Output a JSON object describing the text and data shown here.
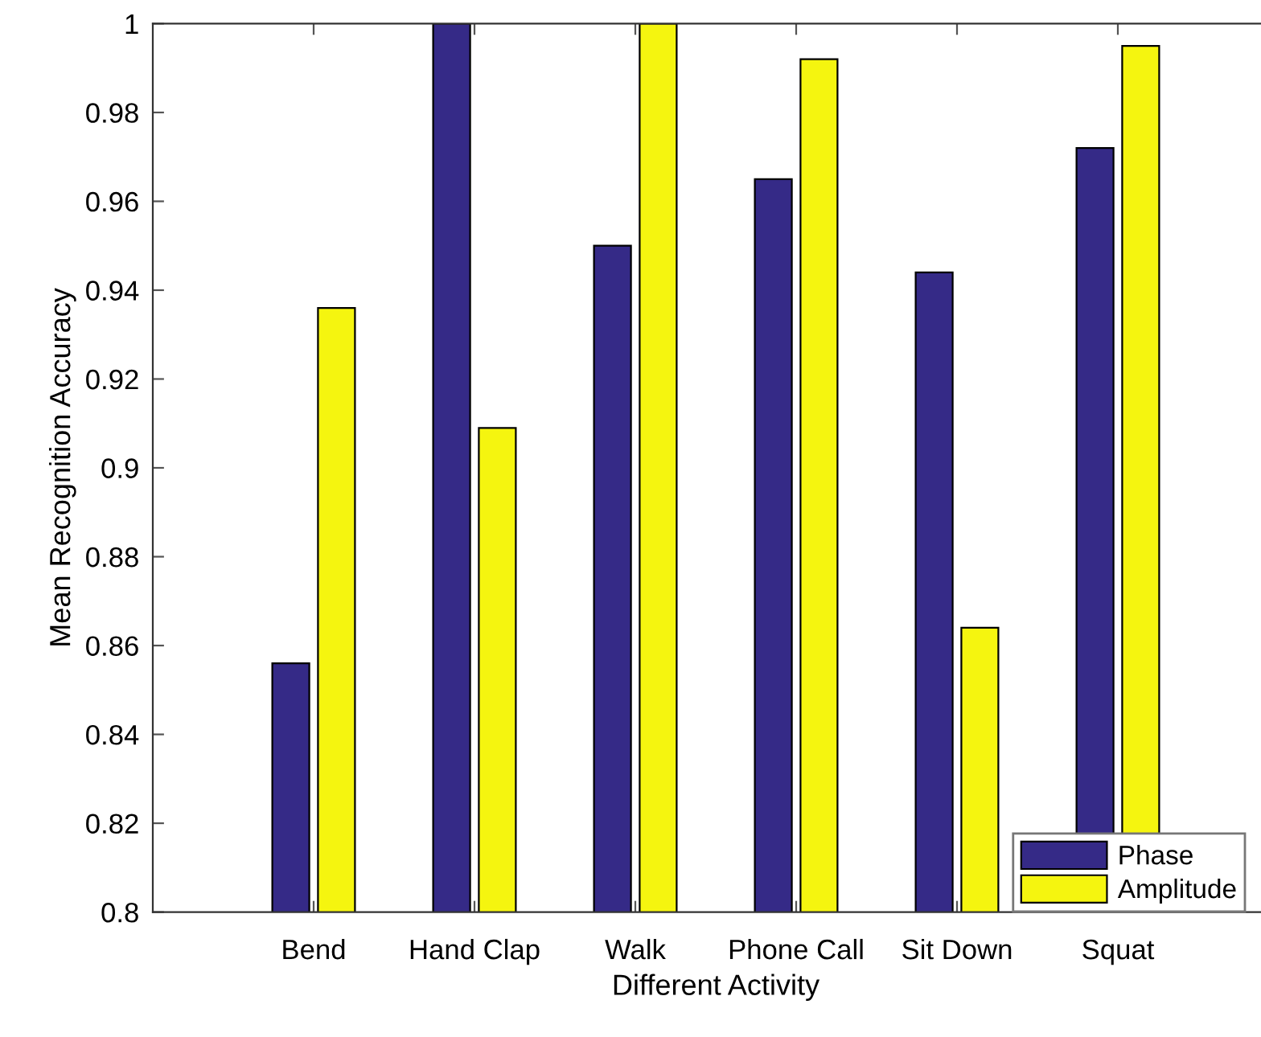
{
  "chart_data": {
    "type": "bar",
    "xlabel": "Different Activity",
    "ylabel": "Mean Recognition Accuracy",
    "categories": [
      "Bend",
      "Hand Clap",
      "Walk",
      "Phone Call",
      "Sit Down",
      "Squat"
    ],
    "series": [
      {
        "name": "Phase",
        "color": "#352a87",
        "values": [
          0.856,
          1.0,
          0.95,
          0.965,
          0.944,
          0.972
        ]
      },
      {
        "name": "Amplitude",
        "color": "#f5f50f",
        "values": [
          0.936,
          0.909,
          1.0,
          0.992,
          0.864,
          0.995
        ]
      }
    ],
    "ylim": [
      0.8,
      1
    ],
    "yticks": [
      0.8,
      0.82,
      0.84,
      0.86,
      0.88,
      0.9,
      0.92,
      0.94,
      0.96,
      0.98,
      1
    ],
    "grid": false,
    "legend": "bottom right"
  }
}
